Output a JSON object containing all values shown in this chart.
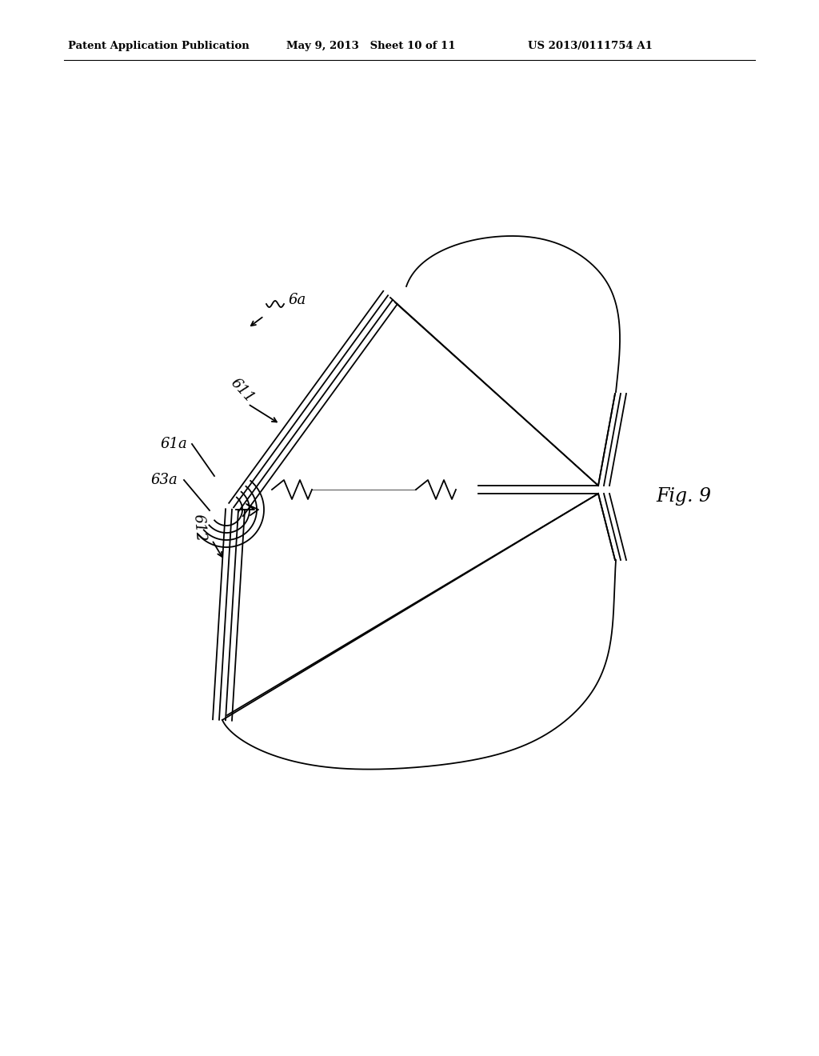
{
  "bg_color": "#ffffff",
  "line_color": "#000000",
  "lw": 1.3,
  "header_left": "Patent Application Publication",
  "header_mid": "May 9, 2013   Sheet 10 of 11",
  "header_right": "US 2013/0111754 A1",
  "fig_label": "Fig. 9"
}
